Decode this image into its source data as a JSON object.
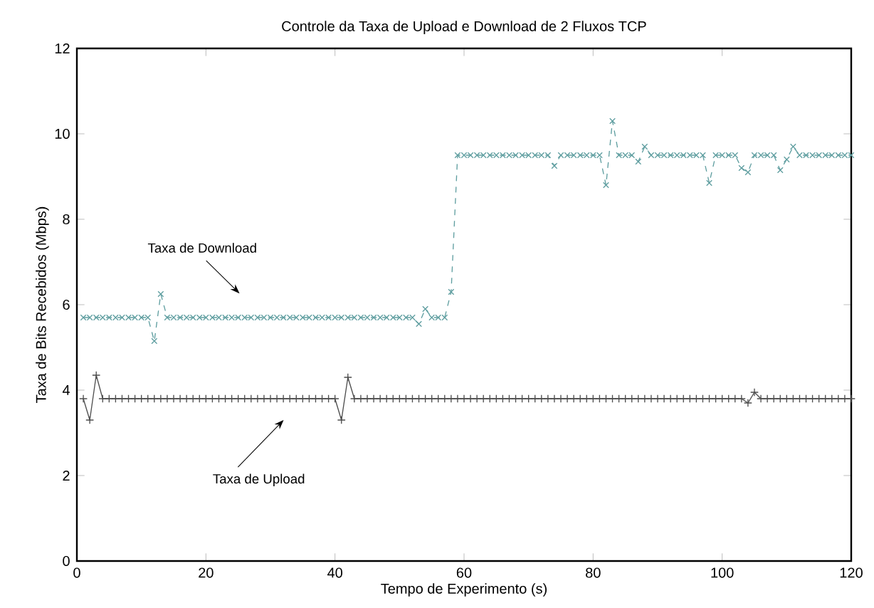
{
  "chart_data": {
    "type": "line",
    "title": "Controle da Taxa de Upload e Download de 2 Fluxos TCP",
    "xlabel": "Tempo de Experimento (s)",
    "ylabel": "Taxa de Bits Recebidos (Mbps)",
    "xlim": [
      0,
      120
    ],
    "ylim": [
      0,
      12
    ],
    "xticks": [
      0,
      20,
      40,
      60,
      80,
      100,
      120
    ],
    "yticks": [
      0,
      2,
      4,
      6,
      8,
      10,
      12
    ],
    "grid": false,
    "x": [
      1,
      2,
      3,
      4,
      5,
      6,
      7,
      8,
      9,
      10,
      11,
      12,
      13,
      14,
      15,
      16,
      17,
      18,
      19,
      20,
      21,
      22,
      23,
      24,
      25,
      26,
      27,
      28,
      29,
      30,
      31,
      32,
      33,
      34,
      35,
      36,
      37,
      38,
      39,
      40,
      41,
      42,
      43,
      44,
      45,
      46,
      47,
      48,
      49,
      50,
      51,
      52,
      53,
      54,
      55,
      56,
      57,
      58,
      59,
      60,
      61,
      62,
      63,
      64,
      65,
      66,
      67,
      68,
      69,
      70,
      71,
      72,
      73,
      74,
      75,
      76,
      77,
      78,
      79,
      80,
      81,
      82,
      83,
      84,
      85,
      86,
      87,
      88,
      89,
      90,
      91,
      92,
      93,
      94,
      95,
      96,
      97,
      98,
      99,
      100,
      101,
      102,
      103,
      104,
      105,
      106,
      107,
      108,
      109,
      110,
      111,
      112,
      113,
      114,
      115,
      116,
      117,
      118,
      119,
      120
    ],
    "series": [
      {
        "color": "#5f9ea0",
        "marker": "cross",
        "line_style": "dashed",
        "values": [
          5.7,
          5.7,
          5.7,
          5.7,
          5.7,
          5.7,
          5.7,
          5.7,
          5.7,
          5.7,
          5.7,
          5.15,
          6.25,
          5.7,
          5.7,
          5.7,
          5.7,
          5.7,
          5.7,
          5.7,
          5.7,
          5.7,
          5.7,
          5.7,
          5.7,
          5.7,
          5.7,
          5.7,
          5.7,
          5.7,
          5.7,
          5.7,
          5.7,
          5.7,
          5.7,
          5.7,
          5.7,
          5.7,
          5.7,
          5.7,
          5.7,
          5.7,
          5.7,
          5.7,
          5.7,
          5.7,
          5.7,
          5.7,
          5.7,
          5.7,
          5.7,
          5.7,
          5.55,
          5.9,
          5.7,
          5.7,
          5.7,
          6.3,
          9.5,
          9.5,
          9.5,
          9.5,
          9.5,
          9.5,
          9.5,
          9.5,
          9.5,
          9.5,
          9.5,
          9.5,
          9.5,
          9.5,
          9.5,
          9.25,
          9.5,
          9.5,
          9.5,
          9.5,
          9.5,
          9.5,
          9.5,
          8.8,
          10.3,
          9.5,
          9.5,
          9.5,
          9.35,
          9.7,
          9.5,
          9.5,
          9.5,
          9.5,
          9.5,
          9.5,
          9.5,
          9.5,
          9.5,
          8.85,
          9.5,
          9.5,
          9.5,
          9.5,
          9.2,
          9.1,
          9.5,
          9.5,
          9.5,
          9.5,
          9.15,
          9.4,
          9.7,
          9.5,
          9.5,
          9.5,
          9.5,
          9.5,
          9.5,
          9.5,
          9.5,
          9.5
        ]
      },
      {
        "color": "#4d4d4d",
        "marker": "plus",
        "line_style": "solid",
        "values": [
          3.8,
          3.3,
          4.35,
          3.8,
          3.8,
          3.8,
          3.8,
          3.8,
          3.8,
          3.8,
          3.8,
          3.8,
          3.8,
          3.8,
          3.8,
          3.8,
          3.8,
          3.8,
          3.8,
          3.8,
          3.8,
          3.8,
          3.8,
          3.8,
          3.8,
          3.8,
          3.8,
          3.8,
          3.8,
          3.8,
          3.8,
          3.8,
          3.8,
          3.8,
          3.8,
          3.8,
          3.8,
          3.8,
          3.8,
          3.8,
          3.3,
          4.3,
          3.8,
          3.8,
          3.8,
          3.8,
          3.8,
          3.8,
          3.8,
          3.8,
          3.8,
          3.8,
          3.8,
          3.8,
          3.8,
          3.8,
          3.8,
          3.8,
          3.8,
          3.8,
          3.8,
          3.8,
          3.8,
          3.8,
          3.8,
          3.8,
          3.8,
          3.8,
          3.8,
          3.8,
          3.8,
          3.8,
          3.8,
          3.8,
          3.8,
          3.8,
          3.8,
          3.8,
          3.8,
          3.8,
          3.8,
          3.8,
          3.8,
          3.8,
          3.8,
          3.8,
          3.8,
          3.8,
          3.8,
          3.8,
          3.8,
          3.8,
          3.8,
          3.8,
          3.8,
          3.8,
          3.8,
          3.8,
          3.8,
          3.8,
          3.8,
          3.8,
          3.8,
          3.7,
          3.95,
          3.8,
          3.8,
          3.8,
          3.8,
          3.8,
          3.8,
          3.8,
          3.8,
          3.8,
          3.8,
          3.8,
          3.8,
          3.8,
          3.8,
          3.8
        ]
      }
    ],
    "annotations": [
      "Taxa de Download",
      "Taxa de Upload"
    ]
  }
}
